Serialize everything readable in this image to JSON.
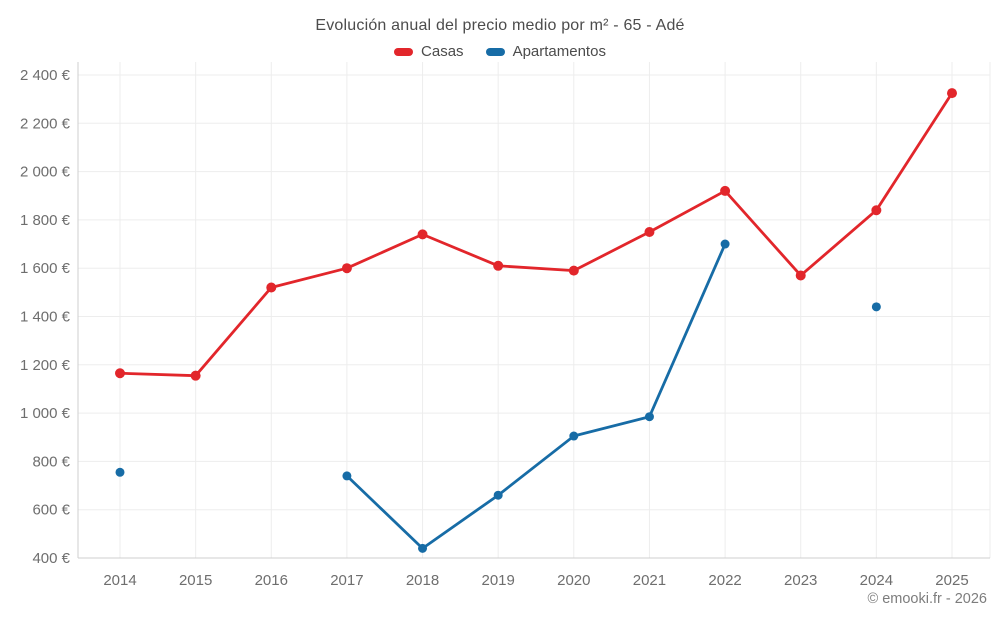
{
  "header": {
    "title": "Evolución anual del precio medio por m² - 65 - Adé"
  },
  "legend": [
    {
      "label": "Casas",
      "color": "#e2262b"
    },
    {
      "label": "Apartamentos",
      "color": "#176ca6"
    }
  ],
  "footer": {
    "copyright": "© emooki.fr - 2026"
  },
  "chart_data": {
    "type": "line",
    "title": "Evolución anual del precio medio por m² - 65 - Adé",
    "categories": [
      "2014",
      "2015",
      "2016",
      "2017",
      "2018",
      "2019",
      "2020",
      "2021",
      "2022",
      "2023",
      "2024",
      "2025"
    ],
    "series": [
      {
        "name": "Casas",
        "color": "#e2262b",
        "values": [
          1165,
          1155,
          1520,
          1600,
          1740,
          1610,
          1590,
          1750,
          1920,
          1570,
          1840,
          2325
        ]
      },
      {
        "name": "Apartamentos",
        "color": "#176ca6",
        "values": [
          755,
          null,
          null,
          740,
          440,
          660,
          905,
          985,
          1700,
          null,
          1440,
          null
        ]
      }
    ],
    "ylim": [
      400,
      2400
    ],
    "y_ticks": [
      400,
      600,
      800,
      1000,
      1200,
      1400,
      1600,
      1800,
      2000,
      2200,
      2400
    ],
    "y_tick_labels": [
      "400 €",
      "600 €",
      "800 €",
      "1 000 €",
      "1 200 €",
      "1 400 €",
      "1 600 €",
      "1 800 €",
      "2 000 €",
      "2 200 €",
      "2 400 €"
    ],
    "ylabel": "",
    "xlabel": "",
    "grid": true,
    "legend_position": "top",
    "grid_color": "#ededed",
    "axis_color": "#cfcfcf",
    "tick_label_color": "#6e6e6e"
  }
}
